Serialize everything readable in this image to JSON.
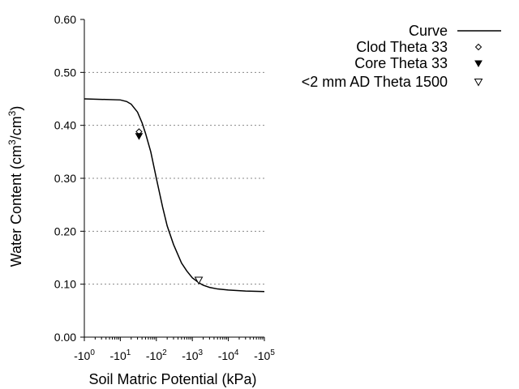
{
  "chart_data": {
    "type": "line",
    "title": "",
    "xlabel": "Soil Matric Potential (kPa)",
    "ylabel_parts": [
      "Water Content (cm",
      "3",
      "/cm",
      "3",
      ")"
    ],
    "x_scale": "log",
    "x_axis_direction": "negative",
    "xlim_abs": [
      1,
      100000
    ],
    "ylim": [
      0.0,
      0.6
    ],
    "x_ticks": [
      {
        "value": 1,
        "base": "-10",
        "exp": "0"
      },
      {
        "value": 10,
        "base": "-10",
        "exp": "1"
      },
      {
        "value": 100,
        "base": "-10",
        "exp": "2"
      },
      {
        "value": 1000,
        "base": "-10",
        "exp": "3"
      },
      {
        "value": 10000,
        "base": "-10",
        "exp": "4"
      },
      {
        "value": 100000,
        "base": "-10",
        "exp": "5"
      }
    ],
    "y_ticks": [
      "0.00",
      "0.10",
      "0.20",
      "0.30",
      "0.40",
      "0.50",
      "0.60"
    ],
    "y_grid": true,
    "legend_position": "top-right",
    "series": [
      {
        "name": "Curve",
        "kind": "line",
        "color": "#000000",
        "x_abs": [
          1,
          10,
          15,
          20,
          30,
          40,
          50,
          70,
          100,
          150,
          200,
          300,
          500,
          700,
          1000,
          1500,
          2000,
          3000,
          5000,
          10000,
          30000,
          100000
        ],
        "y": [
          0.45,
          0.448,
          0.445,
          0.44,
          0.425,
          0.405,
          0.385,
          0.35,
          0.3,
          0.245,
          0.21,
          0.175,
          0.14,
          0.125,
          0.112,
          0.103,
          0.098,
          0.094,
          0.091,
          0.089,
          0.087,
          0.086
        ]
      },
      {
        "name": "Clod Theta 33",
        "kind": "points",
        "marker": "diamond-open",
        "x_abs": [
          33
        ],
        "y": [
          0.388
        ]
      },
      {
        "name": "Core Theta 33",
        "kind": "points",
        "marker": "triangle-down-filled",
        "x_abs": [
          33
        ],
        "y": [
          0.38
        ]
      },
      {
        "name": "<2 mm AD Theta 1500",
        "kind": "points",
        "marker": "triangle-down-open",
        "x_abs": [
          1500
        ],
        "y": [
          0.108
        ]
      }
    ]
  }
}
